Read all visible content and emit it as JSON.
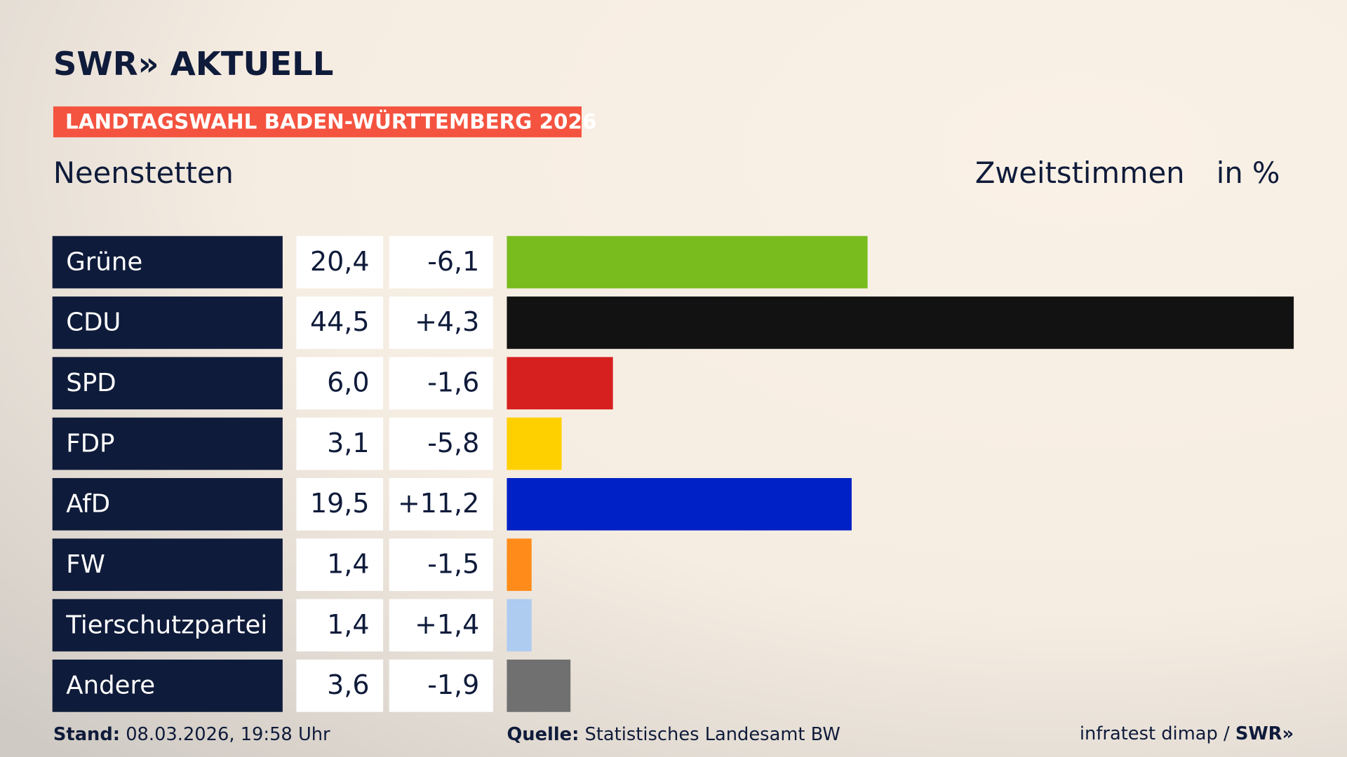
{
  "header": {
    "logo": "SWR» AKTUELL",
    "banner": "LANDTAGSWAHL BADEN-WÜRTTEMBERG 2026"
  },
  "chart_data": {
    "type": "bar",
    "title": "Neenstetten",
    "subtitle": "Zweitstimmen",
    "unit": "in %",
    "categories": [
      "Grüne",
      "CDU",
      "SPD",
      "FDP",
      "AfD",
      "FW",
      "Tierschutzpartei",
      "Andere"
    ],
    "values": [
      20.4,
      44.5,
      6.0,
      3.1,
      19.5,
      1.4,
      1.4,
      3.6
    ],
    "value_labels": [
      "20,4",
      "44,5",
      "6,0",
      "3,1",
      "19,5",
      "1,4",
      "1,4",
      "3,6"
    ],
    "changes": [
      -6.1,
      4.3,
      -1.6,
      -5.8,
      11.2,
      -1.5,
      1.4,
      -1.9
    ],
    "change_labels": [
      "-6,1",
      "+4,3",
      "-1,6",
      "-5,8",
      "+11,2",
      "-1,5",
      "+1,4",
      "-1,9"
    ],
    "colors": [
      "#78bc1e",
      "#121212",
      "#d62020",
      "#ffd000",
      "#0021c6",
      "#ff8c1a",
      "#aecbf0",
      "#707070"
    ]
  },
  "footer": {
    "stand_label": "Stand:",
    "stand": "08.03.2026, 19:58 Uhr",
    "source_label": "Quelle:",
    "source": "Statistisches Landesamt BW",
    "credit": "infratest dimap /",
    "credit_logo": "SWR»"
  }
}
